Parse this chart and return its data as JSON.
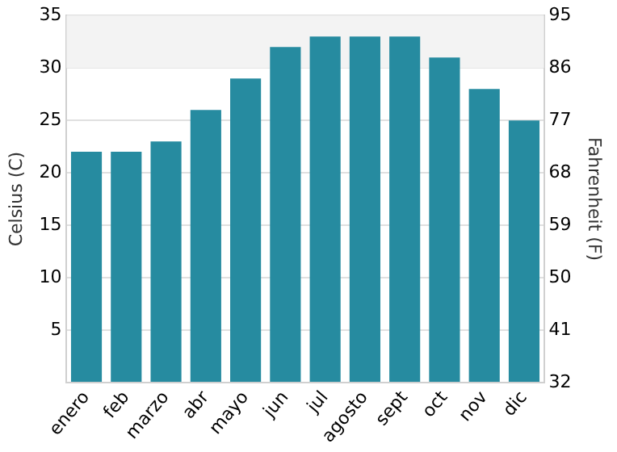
{
  "chart_data": {
    "type": "bar",
    "ylabel": "Celsius (C)",
    "y2label": "Fahrenheit (F)",
    "categories": [
      "enero",
      "feb",
      "marzo",
      "abr",
      "mayo",
      "jun",
      "jul",
      "agosto",
      "sept",
      "oct",
      "nov",
      "dic"
    ],
    "values": [
      22,
      22,
      23,
      26,
      29,
      32,
      33,
      33,
      33,
      31,
      28,
      25
    ],
    "color": "#268ba0",
    "ylim": [
      0,
      35
    ],
    "yticks": [
      {
        "value": 0,
        "label": null
      },
      5,
      10,
      15,
      20,
      25,
      30,
      35
    ],
    "y2lim": [
      32,
      95
    ],
    "y2ticks": [
      32,
      41,
      50,
      59,
      68,
      77,
      86,
      95
    ],
    "bands": [
      {
        "axis": "y",
        "from": 30,
        "to": 35,
        "color": "#f3f3f3"
      }
    ],
    "grid": "y",
    "legend": false
  }
}
